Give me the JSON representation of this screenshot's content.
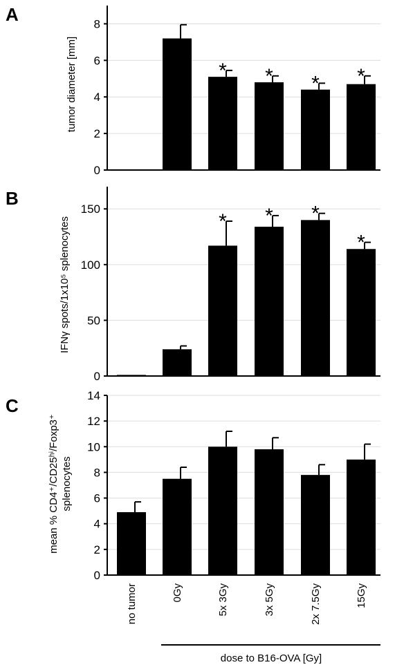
{
  "chart_data": [
    {
      "panel": "A",
      "type": "bar",
      "ylabel": "tumor diameter [mm]",
      "ylim": [
        0,
        9
      ],
      "yticks": [
        0,
        2,
        4,
        6,
        8
      ],
      "categories": [
        "no tumor",
        "0Gy",
        "5x 3Gy",
        "3x 5Gy",
        "2x 7.5Gy",
        "15Gy"
      ],
      "values": [
        0,
        7.2,
        5.1,
        4.8,
        4.4,
        4.7
      ],
      "errors": [
        0,
        0.75,
        0.35,
        0.35,
        0.35,
        0.45
      ],
      "significant": [
        false,
        false,
        true,
        true,
        true,
        true
      ]
    },
    {
      "panel": "B",
      "type": "bar",
      "ylabel": "IFNγ spots/1x10⁵ splenocytes",
      "ylim": [
        0,
        170
      ],
      "yticks": [
        0,
        50,
        100,
        150
      ],
      "categories": [
        "no tumor",
        "0Gy",
        "5x 3Gy",
        "3x 5Gy",
        "2x 7.5Gy",
        "15Gy"
      ],
      "values": [
        1,
        24,
        117,
        134,
        140,
        114
      ],
      "errors": [
        0,
        3,
        22,
        10,
        6,
        6
      ],
      "significant": [
        false,
        false,
        true,
        true,
        true,
        true
      ]
    },
    {
      "panel": "C",
      "type": "bar",
      "ylabel_line1": "mean % CD4⁺/CD25ʰⁱ/Foxp3⁺",
      "ylabel_line2": "splenocytes",
      "ylim": [
        0,
        14
      ],
      "yticks": [
        0,
        2,
        4,
        6,
        8,
        10,
        12,
        14
      ],
      "categories": [
        "no tumor",
        "0Gy",
        "5x 3Gy",
        "3x 5Gy",
        "2x 7.5Gy",
        "15Gy"
      ],
      "values": [
        4.9,
        7.5,
        10.0,
        9.8,
        7.8,
        9.0
      ],
      "errors": [
        0.8,
        0.9,
        1.2,
        0.9,
        0.8,
        1.2
      ],
      "significant": [
        false,
        false,
        false,
        false,
        false,
        false
      ]
    }
  ],
  "group_label": "dose to B16-OVA [Gy]",
  "significance_symbol": "*",
  "colors": {
    "bar": "#000000",
    "axis": "#000000",
    "grid": "#dcdcdc"
  }
}
